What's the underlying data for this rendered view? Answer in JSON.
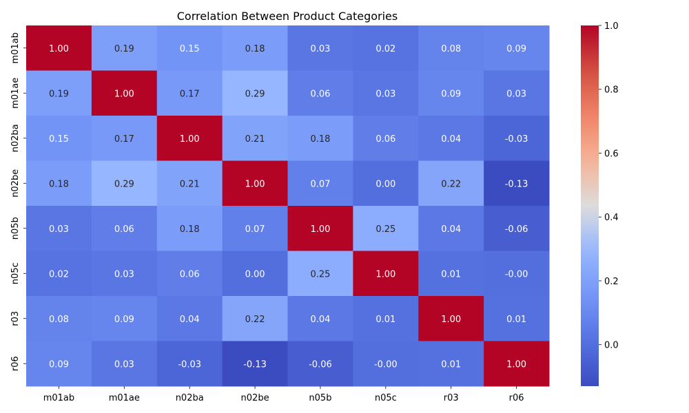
{
  "chart_data": {
    "type": "heatmap",
    "title": "Correlation Between Product Categories",
    "xlabel": "",
    "ylabel": "",
    "x_categories": [
      "m01ab",
      "m01ae",
      "n02ba",
      "n02be",
      "n05b",
      "n05c",
      "r03",
      "r06"
    ],
    "y_categories": [
      "m01ab",
      "m01ae",
      "n02ba",
      "n02be",
      "n05b",
      "n05c",
      "r03",
      "r06"
    ],
    "values": [
      [
        1.0,
        0.19,
        0.15,
        0.18,
        0.03,
        0.02,
        0.08,
        0.09
      ],
      [
        0.19,
        1.0,
        0.17,
        0.29,
        0.06,
        0.03,
        0.09,
        0.03
      ],
      [
        0.15,
        0.17,
        1.0,
        0.21,
        0.18,
        0.06,
        0.04,
        -0.03
      ],
      [
        0.18,
        0.29,
        0.21,
        1.0,
        0.07,
        0.0,
        0.22,
        -0.13
      ],
      [
        0.03,
        0.06,
        0.18,
        0.07,
        1.0,
        0.25,
        0.04,
        -0.06
      ],
      [
        0.02,
        0.03,
        0.06,
        0.0,
        0.25,
        1.0,
        0.01,
        -0.001
      ],
      [
        0.08,
        0.09,
        0.04,
        0.22,
        0.04,
        0.01,
        1.0,
        0.01
      ],
      [
        0.09,
        0.03,
        -0.03,
        -0.13,
        -0.06,
        -0.001,
        0.01,
        1.0
      ]
    ],
    "annotation_format": "2 decimals",
    "colormap": "coolwarm",
    "colorbar": {
      "vmin": -0.13,
      "vmax": 1.0,
      "ticks": [
        0.0,
        0.2,
        0.4,
        0.6,
        0.8,
        1.0
      ],
      "tick_labels": [
        "0.0",
        "0.2",
        "0.4",
        "0.6",
        "0.8",
        "1.0"
      ],
      "placement": "right"
    },
    "grid": false,
    "legend": "none"
  }
}
